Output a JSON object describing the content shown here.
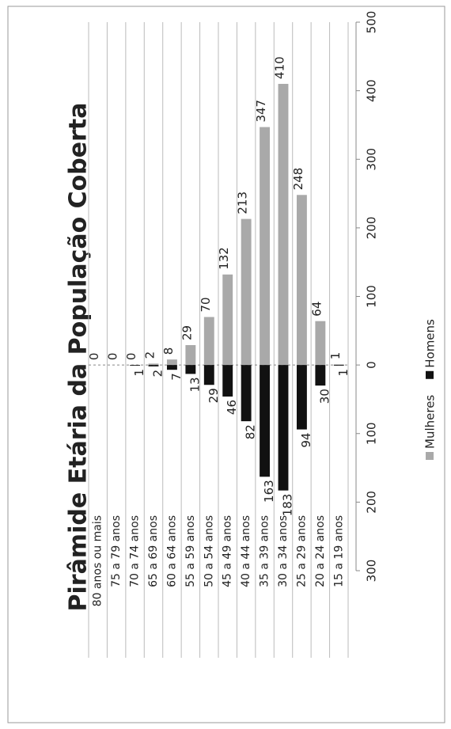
{
  "chart_data": {
    "type": "bar",
    "orientation": "horizontal",
    "title": "Pirâmide Etária da População Coberta",
    "categories": [
      "80 anos ou mais",
      "75 a 79 anos",
      "70 a 74 anos",
      "65 a 69 anos",
      "60 a 64 anos",
      "55 a 59 anos",
      "50 a 54 anos",
      "45 a 49 anos",
      "40 a 44 anos",
      "35 a 39 anos",
      "30 a 34 anos",
      "25 a 29 anos",
      "20 a 24 anos",
      "15 a 19 anos"
    ],
    "series": [
      {
        "name": "Mulheres",
        "color": "#a9a9a9",
        "values": [
          0,
          0,
          0,
          2,
          8,
          29,
          70,
          132,
          213,
          347,
          410,
          248,
          64,
          1
        ]
      },
      {
        "name": "Homens",
        "color": "#111111",
        "values": [
          null,
          null,
          -1,
          -2,
          -7,
          -13,
          -29,
          -46,
          -82,
          -163,
          -183,
          -94,
          -30,
          -1
        ],
        "value_labels": [
          null,
          null,
          "1",
          "2",
          "7",
          "13",
          "29",
          "46",
          "82",
          "163",
          "183",
          "94",
          "30",
          "1"
        ]
      }
    ],
    "xlim": [
      -300,
      500
    ],
    "xticks": [
      {
        "value": -300,
        "label": "300"
      },
      {
        "value": -200,
        "label": "200"
      },
      {
        "value": -100,
        "label": "100"
      },
      0,
      100,
      200,
      300,
      400,
      500
    ],
    "grid": false,
    "legend": "bottom"
  }
}
